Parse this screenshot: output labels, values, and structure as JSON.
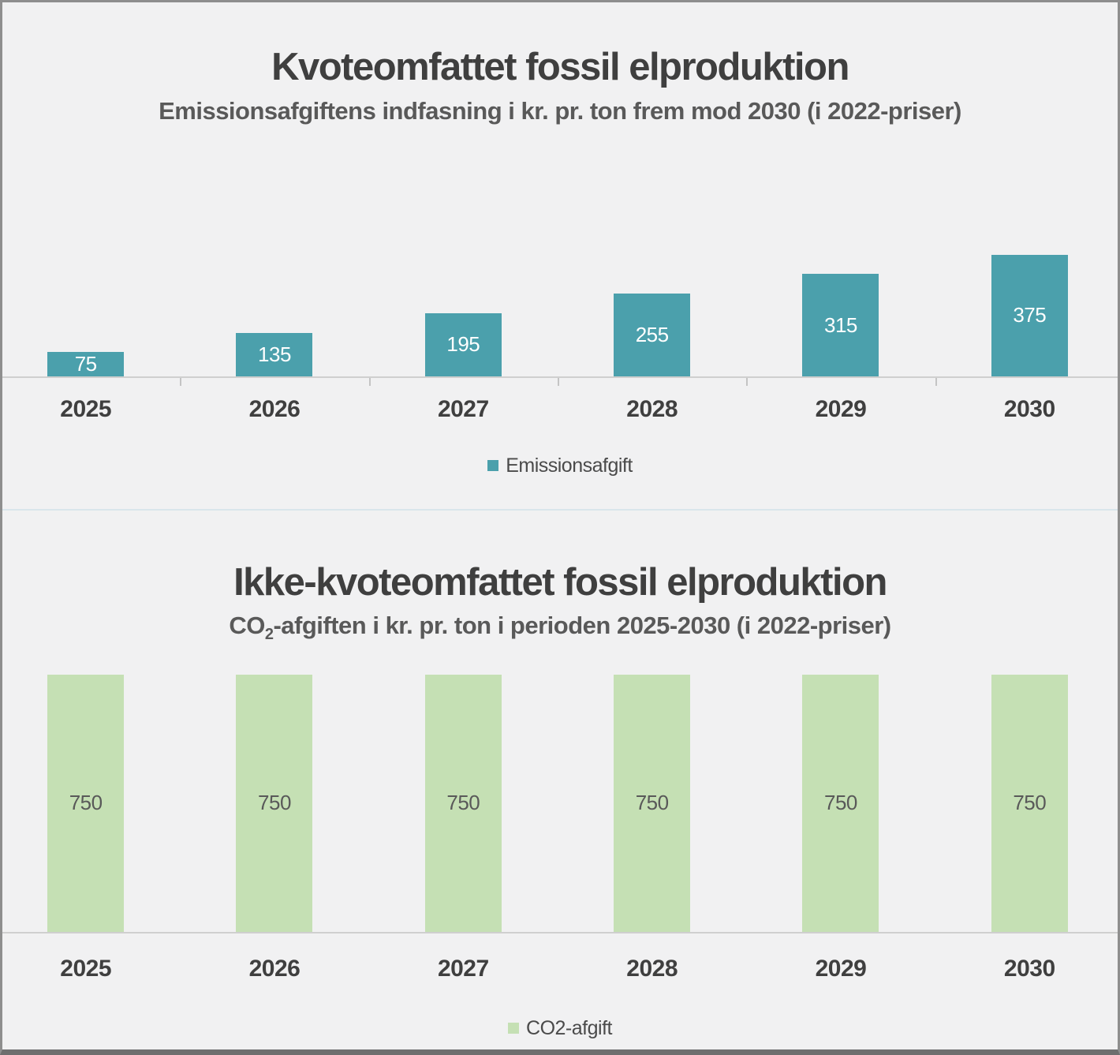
{
  "colors": {
    "background": "#f1f1f2",
    "border": "#8e8e8e",
    "divider": "#d9e6eb",
    "axis": "#cfcfcf",
    "title_text": "#3f3f3f",
    "subtitle_text": "#595959",
    "year_label_text": "#3f3f3f",
    "teal_bar": "#4ba0ac",
    "green_bar": "#c5e0b4"
  },
  "chart_data": [
    {
      "type": "bar",
      "title": "Kvoteomfattet fossil elproduktion",
      "subtitle": "Emissionsafgiftens indfasning i kr. pr. ton frem mod 2030 (i 2022-priser)",
      "categories": [
        "2025",
        "2026",
        "2027",
        "2028",
        "2029",
        "2030"
      ],
      "series": [
        {
          "name": "Emissionsafgift",
          "values": [
            75,
            135,
            195,
            255,
            315,
            375
          ]
        }
      ],
      "legend": {
        "label": "Emissionsafgift",
        "position": "bottom-center"
      },
      "bar_color": "#4ba0ac",
      "value_label_color": "#ffffff",
      "xlabel": "",
      "ylabel": "",
      "ylim": [
        0,
        700
      ],
      "grid": false,
      "data_labels": "inside-center",
      "x_axis_ticks": true
    },
    {
      "type": "bar",
      "title": "Ikke-kvoteomfattet fossil elproduktion",
      "subtitle_plain": "CO2-afgiften i kr. pr. ton i perioden 2025-2030 (i 2022-priser)",
      "subtitle_parts": {
        "prefix": "CO",
        "subscript": "2",
        "rest": "-afgiften i kr. pr. ton i perioden 2025-2030 (i 2022-priser)"
      },
      "categories": [
        "2025",
        "2026",
        "2027",
        "2028",
        "2029",
        "2030"
      ],
      "series": [
        {
          "name": "CO2-afgift",
          "values": [
            750,
            750,
            750,
            750,
            750,
            750
          ]
        }
      ],
      "legend": {
        "label": "CO2-afgift",
        "position": "bottom-center"
      },
      "bar_color": "#c5e0b4",
      "value_label_color": "#595959",
      "xlabel": "",
      "ylabel": "",
      "ylim": [
        0,
        800
      ],
      "grid": false,
      "data_labels": "inside-center",
      "x_axis_ticks": false
    }
  ]
}
